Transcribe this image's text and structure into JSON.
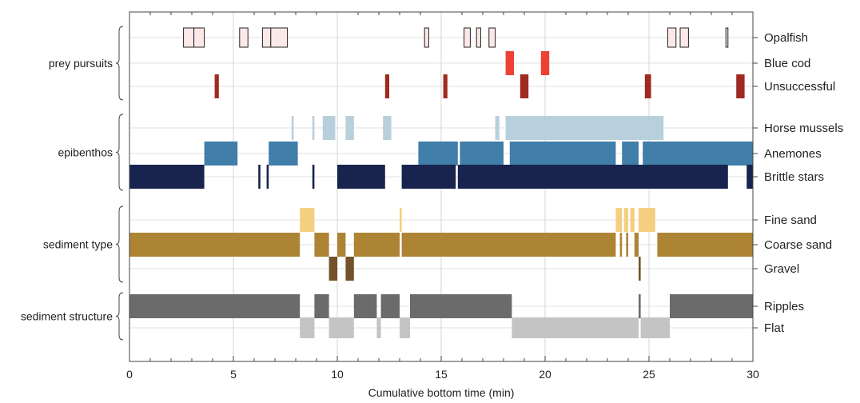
{
  "chart_data": {
    "type": "timeline",
    "xlabel": "Cumulative bottom time (min)",
    "xlim": [
      0,
      30
    ],
    "xticks": [
      "0",
      "5",
      "10",
      "15",
      "20",
      "25",
      "30"
    ],
    "grid": "vertical",
    "groups": [
      {
        "label": "prey pursuits",
        "tracks": [
          {
            "name": "Opalfish",
            "color": "#fde8e8",
            "stroke": "#222222",
            "segments": [
              [
                2.6,
                3.1
              ],
              [
                3.1,
                3.6
              ],
              [
                5.3,
                5.7
              ],
              [
                6.4,
                6.8
              ],
              [
                6.8,
                7.6
              ],
              [
                14.2,
                14.4
              ],
              [
                16.1,
                16.4
              ],
              [
                16.7,
                16.9
              ],
              [
                17.3,
                17.6
              ],
              [
                25.9,
                26.3
              ],
              [
                26.5,
                26.9
              ],
              [
                28.7,
                28.8
              ]
            ]
          },
          {
            "name": "Blue cod",
            "color": "#ee4136",
            "stroke": "",
            "segments": [
              [
                18.1,
                18.5
              ],
              [
                19.8,
                20.2
              ]
            ]
          },
          {
            "name": "Unsuccessful",
            "color": "#9e2a22",
            "stroke": "",
            "segments": [
              [
                4.1,
                4.3
              ],
              [
                12.3,
                12.5
              ],
              [
                15.1,
                15.3
              ],
              [
                18.8,
                19.2
              ],
              [
                24.8,
                25.1
              ],
              [
                29.2,
                29.6
              ]
            ]
          }
        ]
      },
      {
        "label": "epibenthos",
        "tracks": [
          {
            "name": "Horse mussels",
            "color": "#b8cfdc",
            "stroke": "",
            "segments": [
              [
                7.8,
                7.9
              ],
              [
                8.8,
                8.9
              ],
              [
                9.3,
                9.9
              ],
              [
                10.4,
                10.8
              ],
              [
                12.2,
                12.6
              ],
              [
                17.6,
                17.8
              ],
              [
                18.1,
                25.7
              ]
            ]
          },
          {
            "name": "Anemones",
            "color": "#417ea9",
            "stroke": "",
            "segments": [
              [
                3.6,
                5.2
              ],
              [
                6.7,
                8.1
              ],
              [
                13.9,
                15.8
              ],
              [
                15.9,
                18.0
              ],
              [
                18.3,
                23.4
              ],
              [
                23.7,
                24.5
              ],
              [
                24.7,
                30.0
              ]
            ]
          },
          {
            "name": "Brittle stars",
            "color": "#18244d",
            "stroke": "",
            "segments": [
              [
                0.0,
                3.6
              ],
              [
                6.2,
                6.3
              ],
              [
                6.6,
                6.7
              ],
              [
                8.8,
                8.9
              ],
              [
                10.0,
                12.3
              ],
              [
                13.1,
                15.7
              ],
              [
                15.8,
                28.8
              ],
              [
                29.7,
                30.0
              ]
            ]
          }
        ]
      },
      {
        "label": "sediment type",
        "tracks": [
          {
            "name": "Fine sand",
            "color": "#f5cf80",
            "stroke": "",
            "segments": [
              [
                8.2,
                8.9
              ],
              [
                13.0,
                13.1
              ],
              [
                23.4,
                23.7
              ],
              [
                23.8,
                24.0
              ],
              [
                24.1,
                24.3
              ],
              [
                24.5,
                25.3
              ]
            ]
          },
          {
            "name": "Coarse sand",
            "color": "#ad8434",
            "stroke": "",
            "segments": [
              [
                0.0,
                8.2
              ],
              [
                8.9,
                9.6
              ],
              [
                10.0,
                10.4
              ],
              [
                10.8,
                13.0
              ],
              [
                13.1,
                23.4
              ],
              [
                23.6,
                23.7
              ],
              [
                23.9,
                24.0
              ],
              [
                24.3,
                24.5
              ],
              [
                25.4,
                30.0
              ]
            ]
          },
          {
            "name": "Gravel",
            "color": "#73522a",
            "stroke": "",
            "segments": [
              [
                9.6,
                10.0
              ],
              [
                10.4,
                10.8
              ],
              [
                24.5,
                24.6
              ]
            ]
          }
        ]
      },
      {
        "label": "sediment structure",
        "tracks": [
          {
            "name": "Ripples",
            "color": "#6b6b6b",
            "stroke": "",
            "segments": [
              [
                0.0,
                8.2
              ],
              [
                8.9,
                9.6
              ],
              [
                10.8,
                11.9
              ],
              [
                12.1,
                13.0
              ],
              [
                13.5,
                18.4
              ],
              [
                24.5,
                24.6
              ],
              [
                26.0,
                30.0
              ]
            ]
          },
          {
            "name": "Flat",
            "color": "#c4c4c4",
            "stroke": "",
            "segments": [
              [
                8.2,
                8.9
              ],
              [
                9.6,
                10.8
              ],
              [
                11.9,
                12.1
              ],
              [
                13.0,
                13.5
              ],
              [
                18.4,
                24.5
              ],
              [
                24.6,
                26.0
              ]
            ]
          }
        ]
      }
    ]
  }
}
